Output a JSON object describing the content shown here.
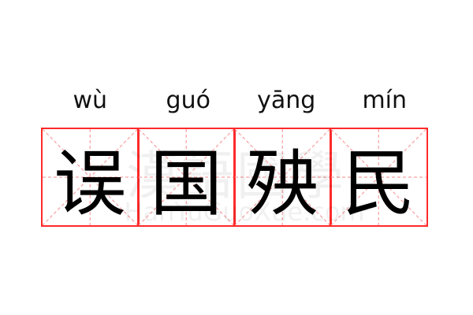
{
  "pinyin": [
    "wù",
    "guó",
    "yāng",
    "mín"
  ],
  "characters": [
    "误",
    "国",
    "殃",
    "民"
  ],
  "watermark": {
    "han": "漢語國學",
    "latin": "HanYuGuoXue.com"
  },
  "colors": {
    "grid_border": "#ff2a2a",
    "guide_lines": "#f8a0a0",
    "text": "#000000"
  }
}
